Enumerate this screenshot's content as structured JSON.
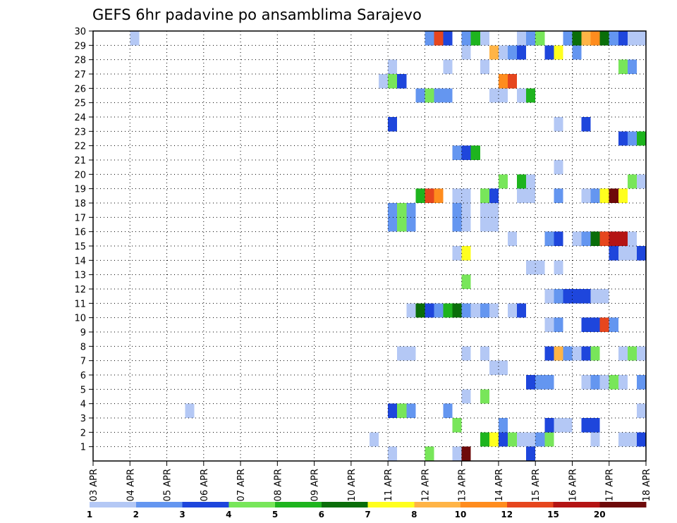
{
  "chart_data": {
    "type": "heatmap",
    "title": "GEFS 6hr padavine po ansamblima Sarajevo",
    "xlabel": "",
    "ylabel": "",
    "x_ticks": [
      "03 APR",
      "04 APR",
      "05 APR",
      "06 APR",
      "07 APR",
      "08 APR",
      "09 APR",
      "10 APR",
      "11 APR",
      "12 APR",
      "13 APR",
      "14 APR",
      "15 APR",
      "16 APR",
      "17 APR",
      "18 APR"
    ],
    "y_ticks": [
      "1",
      "2",
      "3",
      "4",
      "5",
      "6",
      "7",
      "8",
      "9",
      "10",
      "11",
      "12",
      "13",
      "14",
      "15",
      "16",
      "17",
      "18",
      "19",
      "20",
      "21",
      "22",
      "23",
      "24",
      "25",
      "26",
      "27",
      "28",
      "29",
      "30"
    ],
    "x_step_days": 0.25,
    "grid": true,
    "legend": {
      "placement": "bottom",
      "colors": [
        "#b4c8f5",
        "#6496f0",
        "#1e46dc",
        "#78e65a",
        "#1eb41e",
        "#0a6e0a",
        "#ffff1e",
        "#ffb446",
        "#ff8c1e",
        "#e6461e",
        "#b41414",
        "#6e0a0a"
      ],
      "labels": [
        "1",
        "2",
        "3",
        "4",
        "5",
        "6",
        "7",
        "8",
        "10",
        "12",
        "15",
        "20"
      ]
    },
    "palette": [
      "#b4c8f5",
      "#6496f0",
      "#1e46dc",
      "#78e65a",
      "#1eb41e",
      "#0a6e0a",
      "#ffff1e",
      "#ffb446",
      "#ff8c1e",
      "#e6461e",
      "#b41414",
      "#6e0a0a"
    ],
    "cells": [
      {
        "member": 0,
        "x": 11.0,
        "v": 0
      },
      {
        "member": 0,
        "x": 12.0,
        "v": 3
      },
      {
        "member": 0,
        "x": 12.75,
        "v": 0
      },
      {
        "member": 0,
        "x": 13.0,
        "v": 11
      },
      {
        "member": 0,
        "x": 14.75,
        "v": 2
      },
      {
        "member": 1,
        "x": 10.5,
        "v": 0
      },
      {
        "member": 1,
        "x": 13.5,
        "v": 4
      },
      {
        "member": 1,
        "x": 13.75,
        "v": 6
      },
      {
        "member": 1,
        "x": 14.0,
        "v": 2
      },
      {
        "member": 1,
        "x": 14.25,
        "v": 3
      },
      {
        "member": 1,
        "x": 14.5,
        "v": 0
      },
      {
        "member": 1,
        "x": 14.75,
        "v": 0
      },
      {
        "member": 1,
        "x": 15.0,
        "v": 1
      },
      {
        "member": 1,
        "x": 15.25,
        "v": 3
      },
      {
        "member": 1,
        "x": 16.5,
        "v": 0
      },
      {
        "member": 1,
        "x": 17.25,
        "v": 0
      },
      {
        "member": 1,
        "x": 17.5,
        "v": 0
      },
      {
        "member": 1,
        "x": 17.75,
        "v": 2
      },
      {
        "member": 2,
        "x": 12.75,
        "v": 3
      },
      {
        "member": 2,
        "x": 14.0,
        "v": 1
      },
      {
        "member": 2,
        "x": 15.25,
        "v": 2
      },
      {
        "member": 2,
        "x": 15.5,
        "v": 0
      },
      {
        "member": 2,
        "x": 15.75,
        "v": 0
      },
      {
        "member": 2,
        "x": 16.25,
        "v": 2
      },
      {
        "member": 2,
        "x": 16.5,
        "v": 2
      },
      {
        "member": 3,
        "x": 5.5,
        "v": 0
      },
      {
        "member": 3,
        "x": 11.0,
        "v": 2
      },
      {
        "member": 3,
        "x": 11.25,
        "v": 3
      },
      {
        "member": 3,
        "x": 11.5,
        "v": 1
      },
      {
        "member": 3,
        "x": 12.5,
        "v": 1
      },
      {
        "member": 3,
        "x": 17.75,
        "v": 0
      },
      {
        "member": 4,
        "x": 13.0,
        "v": 0
      },
      {
        "member": 4,
        "x": 13.5,
        "v": 3
      },
      {
        "member": 5,
        "x": 14.75,
        "v": 2
      },
      {
        "member": 5,
        "x": 15.0,
        "v": 1
      },
      {
        "member": 5,
        "x": 15.25,
        "v": 1
      },
      {
        "member": 5,
        "x": 16.25,
        "v": 0
      },
      {
        "member": 5,
        "x": 16.5,
        "v": 1
      },
      {
        "member": 5,
        "x": 16.75,
        "v": 0
      },
      {
        "member": 5,
        "x": 17.0,
        "v": 3
      },
      {
        "member": 5,
        "x": 17.25,
        "v": 0
      },
      {
        "member": 5,
        "x": 17.75,
        "v": 1
      },
      {
        "member": 6,
        "x": 13.75,
        "v": 0
      },
      {
        "member": 6,
        "x": 14.0,
        "v": 0
      },
      {
        "member": 7,
        "x": 11.25,
        "v": 0
      },
      {
        "member": 7,
        "x": 11.5,
        "v": 0
      },
      {
        "member": 7,
        "x": 13.0,
        "v": 0
      },
      {
        "member": 7,
        "x": 13.5,
        "v": 0
      },
      {
        "member": 7,
        "x": 15.25,
        "v": 2
      },
      {
        "member": 7,
        "x": 15.5,
        "v": 7
      },
      {
        "member": 7,
        "x": 15.75,
        "v": 1
      },
      {
        "member": 7,
        "x": 16.0,
        "v": 0
      },
      {
        "member": 7,
        "x": 16.25,
        "v": 2
      },
      {
        "member": 7,
        "x": 16.5,
        "v": 3
      },
      {
        "member": 7,
        "x": 17.25,
        "v": 0
      },
      {
        "member": 7,
        "x": 17.5,
        "v": 3
      },
      {
        "member": 7,
        "x": 17.75,
        "v": 0
      },
      {
        "member": 9,
        "x": 15.25,
        "v": 0
      },
      {
        "member": 9,
        "x": 15.5,
        "v": 1
      },
      {
        "member": 9,
        "x": 16.25,
        "v": 2
      },
      {
        "member": 9,
        "x": 16.5,
        "v": 2
      },
      {
        "member": 9,
        "x": 16.75,
        "v": 9
      },
      {
        "member": 9,
        "x": 17.0,
        "v": 1
      },
      {
        "member": 10,
        "x": 11.5,
        "v": 0
      },
      {
        "member": 10,
        "x": 11.75,
        "v": 5
      },
      {
        "member": 10,
        "x": 12.0,
        "v": 2
      },
      {
        "member": 10,
        "x": 12.25,
        "v": 1
      },
      {
        "member": 10,
        "x": 12.5,
        "v": 4
      },
      {
        "member": 10,
        "x": 12.75,
        "v": 5
      },
      {
        "member": 10,
        "x": 13.0,
        "v": 1
      },
      {
        "member": 10,
        "x": 13.25,
        "v": 0
      },
      {
        "member": 10,
        "x": 13.5,
        "v": 1
      },
      {
        "member": 10,
        "x": 13.75,
        "v": 0
      },
      {
        "member": 10,
        "x": 14.25,
        "v": 0
      },
      {
        "member": 10,
        "x": 14.5,
        "v": 2
      },
      {
        "member": 11,
        "x": 15.25,
        "v": 0
      },
      {
        "member": 11,
        "x": 15.5,
        "v": 1
      },
      {
        "member": 11,
        "x": 15.75,
        "v": 2
      },
      {
        "member": 11,
        "x": 16.0,
        "v": 2
      },
      {
        "member": 11,
        "x": 16.25,
        "v": 2
      },
      {
        "member": 11,
        "x": 16.5,
        "v": 0
      },
      {
        "member": 11,
        "x": 16.75,
        "v": 0
      },
      {
        "member": 12,
        "x": 13.0,
        "v": 3
      },
      {
        "member": 13,
        "x": 14.75,
        "v": 0
      },
      {
        "member": 13,
        "x": 15.0,
        "v": 0
      },
      {
        "member": 13,
        "x": 15.5,
        "v": 0
      },
      {
        "member": 14,
        "x": 12.75,
        "v": 0
      },
      {
        "member": 14,
        "x": 13.0,
        "v": 6
      },
      {
        "member": 14,
        "x": 17.0,
        "v": 2
      },
      {
        "member": 14,
        "x": 17.25,
        "v": 0
      },
      {
        "member": 14,
        "x": 17.5,
        "v": 0
      },
      {
        "member": 14,
        "x": 17.75,
        "v": 2
      },
      {
        "member": 15,
        "x": 14.25,
        "v": 0
      },
      {
        "member": 15,
        "x": 15.25,
        "v": 1
      },
      {
        "member": 15,
        "x": 15.5,
        "v": 2
      },
      {
        "member": 15,
        "x": 16.0,
        "v": 0
      },
      {
        "member": 15,
        "x": 16.25,
        "v": 1
      },
      {
        "member": 15,
        "x": 16.5,
        "v": 5
      },
      {
        "member": 15,
        "x": 16.75,
        "v": 9
      },
      {
        "member": 15,
        "x": 17.0,
        "v": 10
      },
      {
        "member": 15,
        "x": 17.25,
        "v": 10
      },
      {
        "member": 15,
        "x": 17.5,
        "v": 0
      },
      {
        "member": 16,
        "x": 11.0,
        "v": 1
      },
      {
        "member": 16,
        "x": 11.25,
        "v": 3
      },
      {
        "member": 16,
        "x": 11.5,
        "v": 1
      },
      {
        "member": 16,
        "x": 12.75,
        "v": 1
      },
      {
        "member": 16,
        "x": 13.0,
        "v": 0
      },
      {
        "member": 16,
        "x": 13.5,
        "v": 0
      },
      {
        "member": 16,
        "x": 13.75,
        "v": 0
      },
      {
        "member": 17,
        "x": 11.0,
        "v": 1
      },
      {
        "member": 17,
        "x": 11.25,
        "v": 3
      },
      {
        "member": 17,
        "x": 11.5,
        "v": 1
      },
      {
        "member": 17,
        "x": 12.75,
        "v": 1
      },
      {
        "member": 17,
        "x": 13.0,
        "v": 0
      },
      {
        "member": 17,
        "x": 13.5,
        "v": 0
      },
      {
        "member": 17,
        "x": 13.75,
        "v": 0
      },
      {
        "member": 18,
        "x": 11.75,
        "v": 4
      },
      {
        "member": 18,
        "x": 12.0,
        "v": 9
      },
      {
        "member": 18,
        "x": 12.25,
        "v": 8
      },
      {
        "member": 18,
        "x": 12.75,
        "v": 0
      },
      {
        "member": 18,
        "x": 13.0,
        "v": 0
      },
      {
        "member": 18,
        "x": 13.5,
        "v": 3
      },
      {
        "member": 18,
        "x": 13.75,
        "v": 2
      },
      {
        "member": 18,
        "x": 14.5,
        "v": 0
      },
      {
        "member": 18,
        "x": 14.75,
        "v": 0
      },
      {
        "member": 18,
        "x": 15.5,
        "v": 1
      },
      {
        "member": 18,
        "x": 16.25,
        "v": 0
      },
      {
        "member": 18,
        "x": 16.5,
        "v": 1
      },
      {
        "member": 18,
        "x": 16.75,
        "v": 6
      },
      {
        "member": 18,
        "x": 17.0,
        "v": 11
      },
      {
        "member": 18,
        "x": 17.25,
        "v": 6
      },
      {
        "member": 19,
        "x": 14.0,
        "v": 3
      },
      {
        "member": 19,
        "x": 14.5,
        "v": 4
      },
      {
        "member": 19,
        "x": 14.75,
        "v": 0
      },
      {
        "member": 19,
        "x": 17.5,
        "v": 3
      },
      {
        "member": 19,
        "x": 17.75,
        "v": 0
      },
      {
        "member": 19,
        "x": 18.0,
        "v": 1
      },
      {
        "member": 20,
        "x": 15.5,
        "v": 0
      },
      {
        "member": 21,
        "x": 12.75,
        "v": 1
      },
      {
        "member": 21,
        "x": 13.0,
        "v": 2
      },
      {
        "member": 21,
        "x": 13.25,
        "v": 4
      },
      {
        "member": 22,
        "x": 17.25,
        "v": 2
      },
      {
        "member": 22,
        "x": 17.5,
        "v": 1
      },
      {
        "member": 22,
        "x": 17.75,
        "v": 4
      },
      {
        "member": 22,
        "x": 18.0,
        "v": 0
      },
      {
        "member": 23,
        "x": 11.0,
        "v": 2
      },
      {
        "member": 23,
        "x": 15.5,
        "v": 0
      },
      {
        "member": 23,
        "x": 16.25,
        "v": 2
      },
      {
        "member": 25,
        "x": 11.75,
        "v": 1
      },
      {
        "member": 25,
        "x": 12.0,
        "v": 3
      },
      {
        "member": 25,
        "x": 12.25,
        "v": 1
      },
      {
        "member": 25,
        "x": 12.5,
        "v": 1
      },
      {
        "member": 25,
        "x": 13.75,
        "v": 0
      },
      {
        "member": 25,
        "x": 14.0,
        "v": 0
      },
      {
        "member": 25,
        "x": 14.5,
        "v": 0
      },
      {
        "member": 25,
        "x": 14.75,
        "v": 4
      },
      {
        "member": 26,
        "x": 10.75,
        "v": 0
      },
      {
        "member": 26,
        "x": 11.0,
        "v": 3
      },
      {
        "member": 26,
        "x": 11.25,
        "v": 2
      },
      {
        "member": 26,
        "x": 14.0,
        "v": 8
      },
      {
        "member": 26,
        "x": 14.25,
        "v": 9
      },
      {
        "member": 27,
        "x": 11.0,
        "v": 0
      },
      {
        "member": 27,
        "x": 12.5,
        "v": 0
      },
      {
        "member": 27,
        "x": 13.5,
        "v": 0
      },
      {
        "member": 27,
        "x": 17.25,
        "v": 3
      },
      {
        "member": 27,
        "x": 17.5,
        "v": 1
      },
      {
        "member": 28,
        "x": 13.0,
        "v": 0
      },
      {
        "member": 28,
        "x": 13.75,
        "v": 7
      },
      {
        "member": 28,
        "x": 14.0,
        "v": 0
      },
      {
        "member": 28,
        "x": 14.25,
        "v": 1
      },
      {
        "member": 28,
        "x": 14.5,
        "v": 2
      },
      {
        "member": 28,
        "x": 15.25,
        "v": 2
      },
      {
        "member": 28,
        "x": 15.5,
        "v": 6
      },
      {
        "member": 28,
        "x": 16.0,
        "v": 1
      },
      {
        "member": 29,
        "x": 4.0,
        "v": 0
      },
      {
        "member": 29,
        "x": 12.0,
        "v": 1
      },
      {
        "member": 29,
        "x": 12.25,
        "v": 9
      },
      {
        "member": 29,
        "x": 12.5,
        "v": 2
      },
      {
        "member": 29,
        "x": 13.0,
        "v": 1
      },
      {
        "member": 29,
        "x": 13.25,
        "v": 4
      },
      {
        "member": 29,
        "x": 13.5,
        "v": 0
      },
      {
        "member": 29,
        "x": 14.5,
        "v": 0
      },
      {
        "member": 29,
        "x": 14.75,
        "v": 1
      },
      {
        "member": 29,
        "x": 15.0,
        "v": 3
      },
      {
        "member": 29,
        "x": 15.75,
        "v": 1
      },
      {
        "member": 29,
        "x": 16.0,
        "v": 5
      },
      {
        "member": 29,
        "x": 16.25,
        "v": 7
      },
      {
        "member": 29,
        "x": 16.5,
        "v": 8
      },
      {
        "member": 29,
        "x": 16.75,
        "v": 5
      },
      {
        "member": 29,
        "x": 17.0,
        "v": 1
      },
      {
        "member": 29,
        "x": 17.25,
        "v": 2
      },
      {
        "member": 29,
        "x": 17.5,
        "v": 0
      },
      {
        "member": 29,
        "x": 17.75,
        "v": 0
      }
    ]
  }
}
